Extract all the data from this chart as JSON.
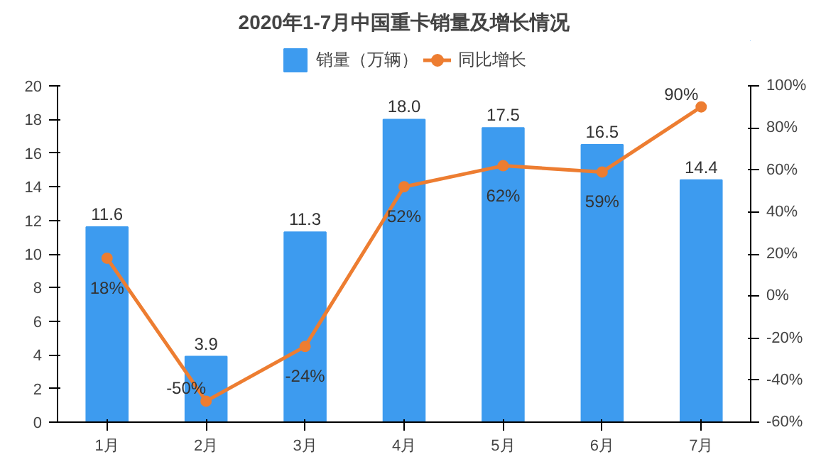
{
  "chart_data": {
    "type": "bar",
    "title": "2020年1-7月中国重卡销量及增长情况",
    "categories": [
      "1月",
      "2月",
      "3月",
      "4月",
      "5月",
      "6月",
      "7月"
    ],
    "series": [
      {
        "name": "销量（万辆）",
        "color": "#3d9bef",
        "values": [
          11.6,
          3.9,
          11.3,
          18.0,
          17.5,
          16.5,
          14.4
        ],
        "value_labels": [
          "11.6",
          "3.9",
          "11.3",
          "18.0",
          "17.5",
          "16.5",
          "14.4"
        ]
      },
      {
        "name": "同比增长",
        "type": "line",
        "axis": "y2",
        "color": "#ed7d31",
        "values": [
          18,
          -50,
          -24,
          52,
          62,
          59,
          90
        ],
        "value_labels": [
          "18%",
          "-50%",
          "-24%",
          "52%",
          "62%",
          "59%",
          "90%"
        ]
      }
    ],
    "ylim": [
      0,
      20
    ],
    "yticks": [
      0,
      2,
      4,
      6,
      8,
      10,
      12,
      14,
      16,
      18,
      20
    ],
    "y2lim": [
      -60,
      100
    ],
    "y2ticks": [
      {
        "value": -60,
        "label": "-60%"
      },
      {
        "value": -40,
        "label": "-40%"
      },
      {
        "value": -20,
        "label": "-20%"
      },
      {
        "value": 0,
        "label": "0%"
      },
      {
        "value": 20,
        "label": "20%"
      },
      {
        "value": 40,
        "label": "40%"
      },
      {
        "value": 60,
        "label": "60%"
      },
      {
        "value": 80,
        "label": "80%"
      },
      {
        "value": 100,
        "label": "100%"
      }
    ],
    "legend": "top",
    "grid": false,
    "marker": "circle"
  }
}
